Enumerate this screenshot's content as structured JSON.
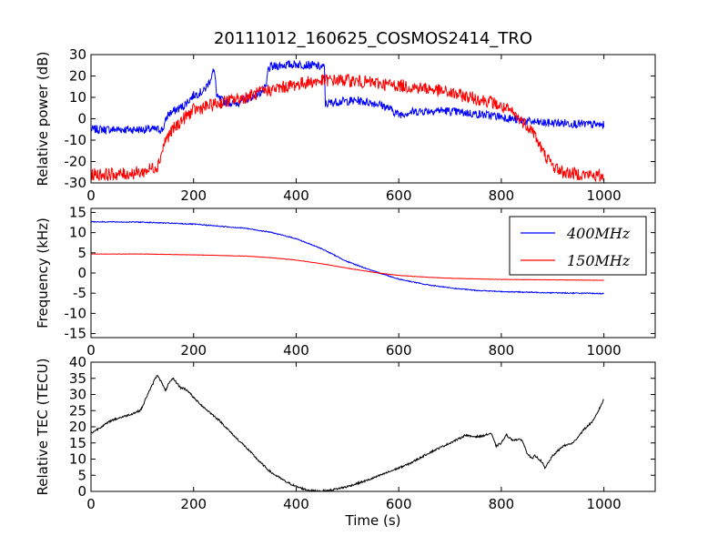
{
  "figure": {
    "title": "20111012_160625_COSMOS2414_TRO",
    "background": "#ffffff"
  },
  "chart_data": [
    {
      "type": "line",
      "ylabel": "Relative power (dB)",
      "xlabel": "",
      "xlim": [
        0,
        1100
      ],
      "ylim": [
        -30,
        30
      ],
      "xticks": [
        0,
        200,
        400,
        600,
        800,
        1000
      ],
      "yticks": [
        -30,
        -20,
        -10,
        0,
        10,
        20,
        30
      ],
      "grid": false,
      "legend": "none",
      "series": [
        {
          "color": "#0000ff",
          "noise": 2.0,
          "x": [
            0,
            50,
            100,
            140,
            150,
            180,
            200,
            220,
            230,
            238,
            242,
            245,
            260,
            280,
            300,
            320,
            335,
            342,
            345,
            350,
            370,
            400,
            430,
            455,
            457,
            460,
            480,
            520,
            560,
            580,
            600,
            620,
            640,
            680,
            720,
            760,
            800,
            840,
            880,
            920,
            960,
            1000
          ],
          "y": [
            -5,
            -5,
            -5,
            -5,
            2,
            6,
            11,
            13,
            17,
            22,
            21,
            10,
            8,
            7,
            9,
            11,
            13,
            15,
            23,
            24,
            25,
            25.5,
            25,
            24,
            7,
            7,
            8,
            8.5,
            7,
            5,
            2,
            3,
            3.5,
            4,
            3,
            2,
            1,
            -1,
            -2,
            -2,
            -2.5,
            -3
          ]
        },
        {
          "color": "#ff0000",
          "noise": 3.0,
          "x": [
            0,
            60,
            100,
            130,
            145,
            160,
            180,
            200,
            230,
            260,
            300,
            340,
            380,
            420,
            460,
            500,
            540,
            580,
            620,
            660,
            700,
            740,
            780,
            820,
            860,
            880,
            900,
            920,
            960,
            1000
          ],
          "y": [
            -26,
            -26,
            -25,
            -22,
            -10,
            -5,
            0,
            4,
            6,
            8,
            10,
            13,
            15,
            17,
            18,
            18,
            17,
            16,
            15,
            14,
            12,
            10,
            8,
            3,
            -5,
            -15,
            -22,
            -25,
            -26,
            -27
          ]
        }
      ]
    },
    {
      "type": "line",
      "ylabel": "Frequency (kHz)",
      "xlabel": "",
      "xlim": [
        0,
        1100
      ],
      "ylim": [
        -16,
        16
      ],
      "xticks": [
        0,
        200,
        400,
        600,
        800,
        1000
      ],
      "yticks": [
        -15,
        -10,
        -5,
        0,
        5,
        10,
        15
      ],
      "grid": false,
      "legend": "top-right",
      "series": [
        {
          "name": "400MHz",
          "color": "#0000ff",
          "noise": 0.12,
          "x": [
            0,
            100,
            200,
            300,
            350,
            400,
            450,
            500,
            550,
            600,
            650,
            700,
            750,
            800,
            900,
            1000
          ],
          "y": [
            12.7,
            12.6,
            12.1,
            11.1,
            10.1,
            8.5,
            6.0,
            2.8,
            0.5,
            -1.5,
            -2.8,
            -3.7,
            -4.3,
            -4.6,
            -4.9,
            -5.1
          ]
        },
        {
          "name": "150MHz",
          "color": "#ff0000",
          "noise": 0.05,
          "x": [
            0,
            100,
            200,
            300,
            350,
            400,
            450,
            500,
            550,
            600,
            650,
            700,
            800,
            900,
            1000
          ],
          "y": [
            4.7,
            4.7,
            4.5,
            4.2,
            3.8,
            3.2,
            2.3,
            1.2,
            0.2,
            -0.6,
            -1.0,
            -1.3,
            -1.6,
            -1.7,
            -1.8
          ]
        }
      ]
    },
    {
      "type": "line",
      "ylabel": "Relative TEC (TECU)",
      "xlabel": "Time (s)",
      "xlim": [
        0,
        1100
      ],
      "ylim": [
        0,
        40
      ],
      "xticks": [
        0,
        200,
        400,
        600,
        800,
        1000
      ],
      "yticks": [
        0,
        5,
        10,
        15,
        20,
        25,
        30,
        35,
        40
      ],
      "grid": false,
      "legend": "none",
      "series": [
        {
          "color": "#000000",
          "noise": 0.3,
          "x": [
            0,
            10,
            20,
            40,
            60,
            80,
            95,
            100,
            110,
            120,
            125,
            130,
            140,
            145,
            150,
            160,
            170,
            175,
            180,
            190,
            200,
            220,
            250,
            280,
            300,
            330,
            350,
            380,
            400,
            420,
            440,
            460,
            480,
            500,
            540,
            580,
            620,
            660,
            700,
            720,
            730,
            740,
            760,
            780,
            790,
            800,
            810,
            820,
            840,
            850,
            860,
            865,
            870,
            880,
            885,
            890,
            900,
            920,
            940,
            960,
            980,
            1000
          ],
          "y": [
            18,
            19,
            20,
            22,
            23,
            24,
            25,
            26,
            30,
            33,
            35,
            36,
            33,
            31,
            33,
            35,
            33,
            32,
            32,
            31,
            29,
            26,
            22,
            17,
            14,
            9,
            6,
            3,
            1.5,
            0.5,
            0.1,
            0.2,
            0.8,
            1.5,
            3.5,
            6,
            8.5,
            12,
            15,
            16.5,
            17.5,
            17,
            17,
            18,
            14,
            15,
            17.5,
            16,
            16,
            12,
            10,
            11,
            10.5,
            9,
            7,
            8.5,
            11,
            14,
            15,
            19,
            22,
            28.5
          ]
        }
      ]
    }
  ]
}
